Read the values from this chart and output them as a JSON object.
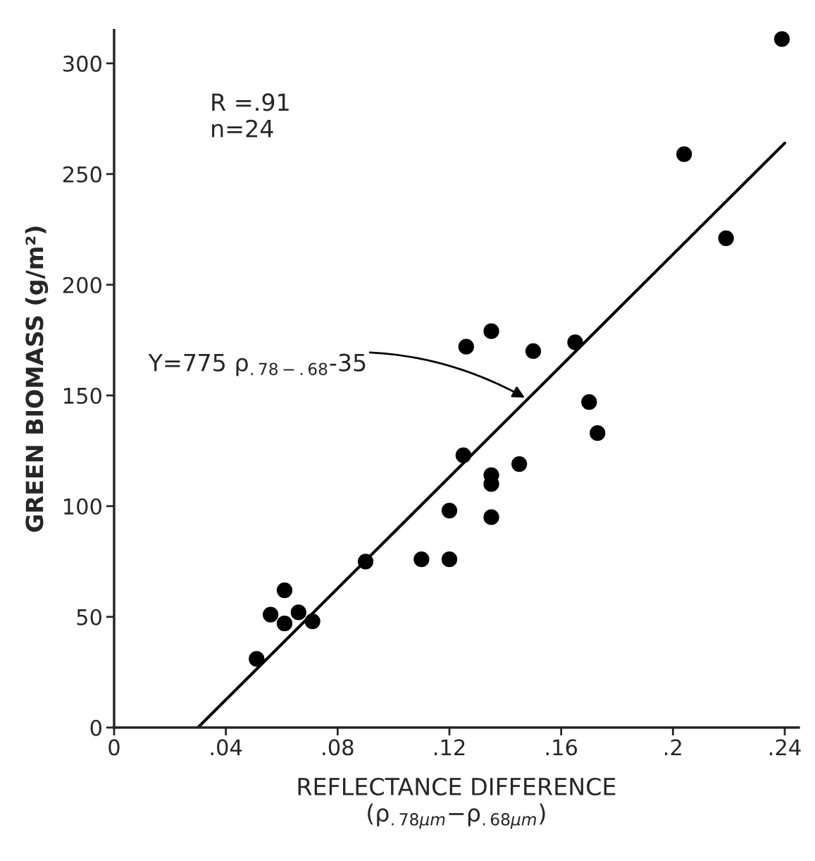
{
  "chart_data": {
    "type": "scatter",
    "xlabel": "REFLECTANCE DIFFERENCE\n(ρ$_{.78µm}$−ρ$_{.68µm}$)",
    "ylabel": "GREEN BIOMASS (g/m²)",
    "xlim": [
      0,
      0.245
    ],
    "ylim": [
      0,
      315
    ],
    "xticks": [
      0,
      {
        "value": 0.04,
        "label": ".04"
      },
      {
        "value": 0.08,
        "label": ".08"
      },
      {
        "value": 0.12,
        "label": ".12"
      },
      {
        "value": 0.16,
        "label": ".16"
      },
      {
        "value": 0.2,
        "label": ".2"
      },
      {
        "value": 0.24,
        "label": ".24"
      }
    ],
    "yticks": [
      0,
      50,
      100,
      150,
      200,
      250,
      300
    ],
    "grid": false,
    "series": [
      {
        "marker": "circle",
        "color": "#000000",
        "x": [
          0.051,
          0.056,
          0.061,
          0.061,
          0.066,
          0.071,
          0.09,
          0.11,
          0.12,
          0.12,
          0.125,
          0.126,
          0.135,
          0.135,
          0.135,
          0.135,
          0.145,
          0.15,
          0.165,
          0.17,
          0.173,
          0.204,
          0.219,
          0.239
        ],
        "values": [
          31,
          51,
          62,
          47,
          52,
          48,
          75,
          76,
          76,
          98,
          123,
          172,
          114,
          110,
          95,
          179,
          119,
          170,
          174,
          147,
          133,
          259,
          221,
          311
        ]
      },
      {
        "type": "line",
        "color": "#000000",
        "x": [
          0.03,
          0.24
        ],
        "values": [
          0,
          264
        ]
      }
    ],
    "annotations": [
      "R =.91\nn=24",
      {
        "text": "Y=775 ρ$_{.78−.68}$-35",
        "x": 0.147,
        "y": 149
      }
    ]
  }
}
